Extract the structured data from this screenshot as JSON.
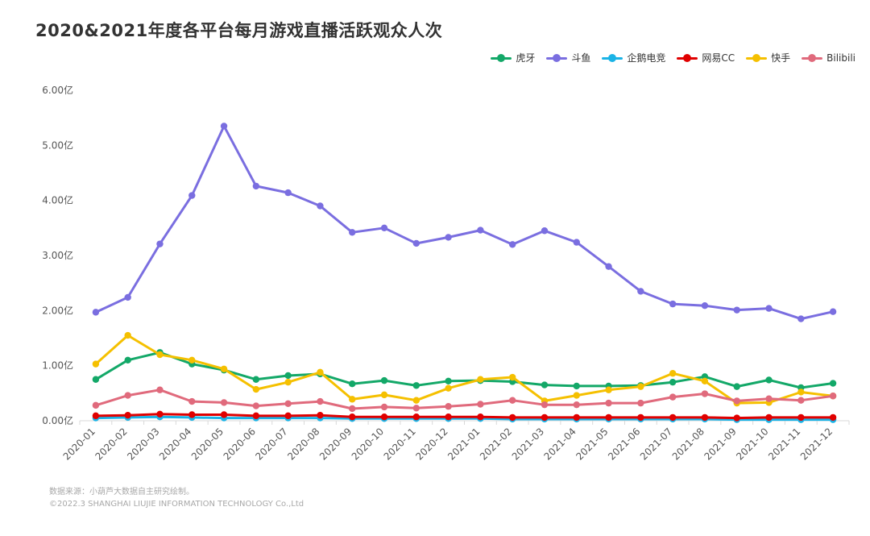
{
  "title": "2020&2021年度各平台每月游戏直播活跃观众人次",
  "footer": {
    "source": "数据来源：小葫芦大数据自主研究绘制。",
    "copyright": "©2022.3 SHANGHAI LIUJIE INFORMATION  TECHNOLOGY Co.,Ltd"
  },
  "chart_data": {
    "type": "line",
    "title": "2020&2021年度各平台每月游戏直播活跃观众人次",
    "xlabel": "",
    "ylabel": "",
    "ylim": [
      0,
      6
    ],
    "y_ticks": [
      "0.00亿",
      "1.00亿",
      "2.00亿",
      "3.00亿",
      "4.00亿",
      "5.00亿",
      "6.00亿"
    ],
    "y_tick_values": [
      0,
      1,
      2,
      3,
      4,
      5,
      6
    ],
    "grid": false,
    "legend_position": "top-right",
    "categories": [
      "2020-01",
      "2020-02",
      "2020-03",
      "2020-04",
      "2020-05",
      "2020-06",
      "2020-07",
      "2020-08",
      "2020-09",
      "2020-10",
      "2020-11",
      "2020-12",
      "2021-01",
      "2021-02",
      "2021-03",
      "2021-04",
      "2021-05",
      "2021-06",
      "2021-07",
      "2021-08",
      "2021-09",
      "2021-10",
      "2021-11",
      "2021-12"
    ],
    "series": [
      {
        "name": "虎牙",
        "color": "#13a868",
        "values": [
          0.75,
          1.1,
          1.24,
          1.03,
          0.92,
          0.75,
          0.82,
          0.85,
          0.67,
          0.73,
          0.64,
          0.72,
          0.73,
          0.71,
          0.65,
          0.63,
          0.63,
          0.64,
          0.7,
          0.8,
          0.62,
          0.74,
          0.6,
          0.68
        ]
      },
      {
        "name": "斗鱼",
        "color": "#7a6ee0",
        "values": [
          1.97,
          2.24,
          3.21,
          4.09,
          5.35,
          4.26,
          4.14,
          3.9,
          3.42,
          3.5,
          3.22,
          3.33,
          3.46,
          3.2,
          3.45,
          3.24,
          2.8,
          2.35,
          2.12,
          2.09,
          2.01,
          2.04,
          1.85,
          1.98
        ]
      },
      {
        "name": "企鹅电竞",
        "color": "#1ab3e6",
        "values": [
          0.05,
          0.06,
          0.07,
          0.06,
          0.05,
          0.05,
          0.05,
          0.05,
          0.04,
          0.04,
          0.04,
          0.04,
          0.04,
          0.03,
          0.03,
          0.03,
          0.03,
          0.03,
          0.03,
          0.03,
          0.02,
          0.02,
          0.02,
          0.02
        ]
      },
      {
        "name": "网易CC",
        "color": "#e00000",
        "values": [
          0.09,
          0.1,
          0.12,
          0.11,
          0.11,
          0.09,
          0.09,
          0.1,
          0.07,
          0.07,
          0.07,
          0.07,
          0.07,
          0.06,
          0.06,
          0.06,
          0.06,
          0.06,
          0.06,
          0.06,
          0.05,
          0.06,
          0.06,
          0.06
        ]
      },
      {
        "name": "快手",
        "color": "#f5c000",
        "values": [
          1.03,
          1.55,
          1.2,
          1.1,
          0.94,
          0.57,
          0.7,
          0.88,
          0.39,
          0.47,
          0.37,
          0.59,
          0.75,
          0.79,
          0.36,
          0.46,
          0.56,
          0.62,
          0.86,
          0.72,
          0.32,
          0.33,
          0.52,
          0.45
        ]
      },
      {
        "name": "Bilibili",
        "color": "#e06a7c",
        "values": [
          0.28,
          0.46,
          0.56,
          0.35,
          0.33,
          0.27,
          0.31,
          0.35,
          0.22,
          0.25,
          0.23,
          0.26,
          0.3,
          0.37,
          0.29,
          0.29,
          0.32,
          0.32,
          0.43,
          0.49,
          0.36,
          0.4,
          0.37,
          0.45
        ]
      }
    ]
  }
}
